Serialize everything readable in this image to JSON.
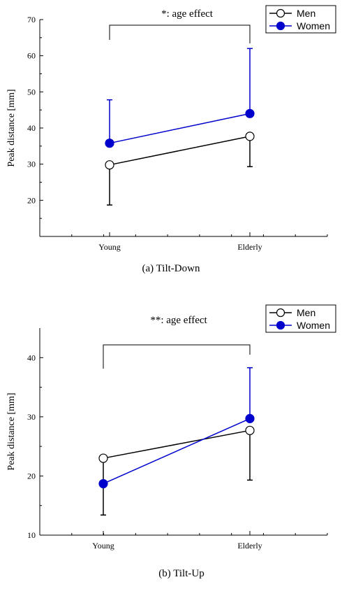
{
  "chart_data": [
    {
      "type": "line",
      "caption": "(a) Tilt-Down",
      "annotation": "*: age effect",
      "ylabel": "Peak distance [mm]",
      "categories": [
        "Young",
        "Elderly"
      ],
      "ylim": [
        10,
        70
      ],
      "yticks": [
        20,
        30,
        40,
        50,
        60,
        70
      ],
      "series": [
        {
          "name": "Men",
          "values": [
            29.8,
            37.7
          ],
          "error_low": [
            18.7,
            29.3
          ],
          "error_high": [
            null,
            null
          ],
          "color": "#000000",
          "marker": "open-circle"
        },
        {
          "name": "Women",
          "values": [
            35.8,
            44.0
          ],
          "error_low": [
            null,
            null
          ],
          "error_high": [
            47.8,
            62.0
          ],
          "color": "#0000cc",
          "marker": "filled-circle"
        }
      ],
      "legend": "top-right",
      "grid": false
    },
    {
      "type": "line",
      "caption": "(b) Tilt-Up",
      "annotation": "**: age effect",
      "ylabel": "Peak distance [mm]",
      "categories": [
        "Young",
        "Elderly"
      ],
      "ylim": [
        10,
        45
      ],
      "yticks": [
        10,
        20,
        30,
        40
      ],
      "series": [
        {
          "name": "Men",
          "values": [
            23.0,
            27.7
          ],
          "error_low": [
            13.4,
            19.3
          ],
          "error_high": [
            null,
            null
          ],
          "color": "#000000",
          "marker": "open-circle"
        },
        {
          "name": "Women",
          "values": [
            18.7,
            29.7
          ],
          "error_low": [
            null,
            null
          ],
          "error_high": [
            null,
            38.3
          ],
          "color": "#0000cc",
          "marker": "filled-circle"
        }
      ],
      "legend": "top-right",
      "grid": false
    }
  ]
}
